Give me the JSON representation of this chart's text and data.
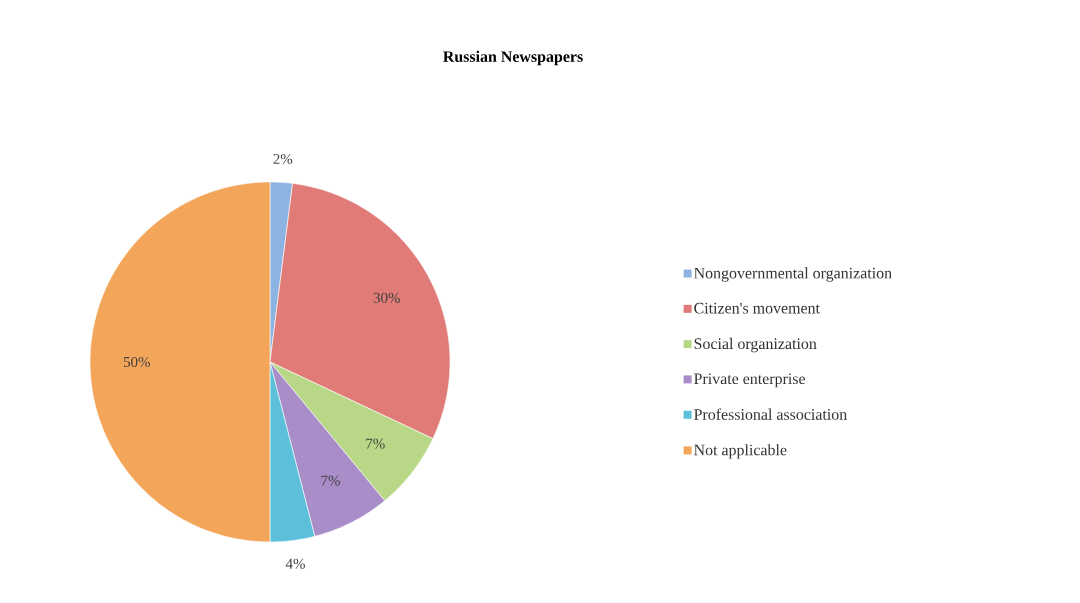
{
  "chart_data": {
    "type": "pie",
    "title": "Russian Newspapers",
    "categories": [
      "Nongovernmental organization",
      "Citizen's movement",
      "Social organization",
      "Private enterprise",
      "Professional association",
      "Not applicable"
    ],
    "values": [
      2,
      30,
      7,
      7,
      4,
      50
    ],
    "colors": [
      "#8db3e2",
      "#e07b77",
      "#b8d888",
      "#a88dc8",
      "#5cc0db",
      "#f3a55a"
    ],
    "value_labels": [
      "2%",
      "30%",
      "7%",
      "7%",
      "4%",
      "50%"
    ],
    "legend": "right"
  }
}
